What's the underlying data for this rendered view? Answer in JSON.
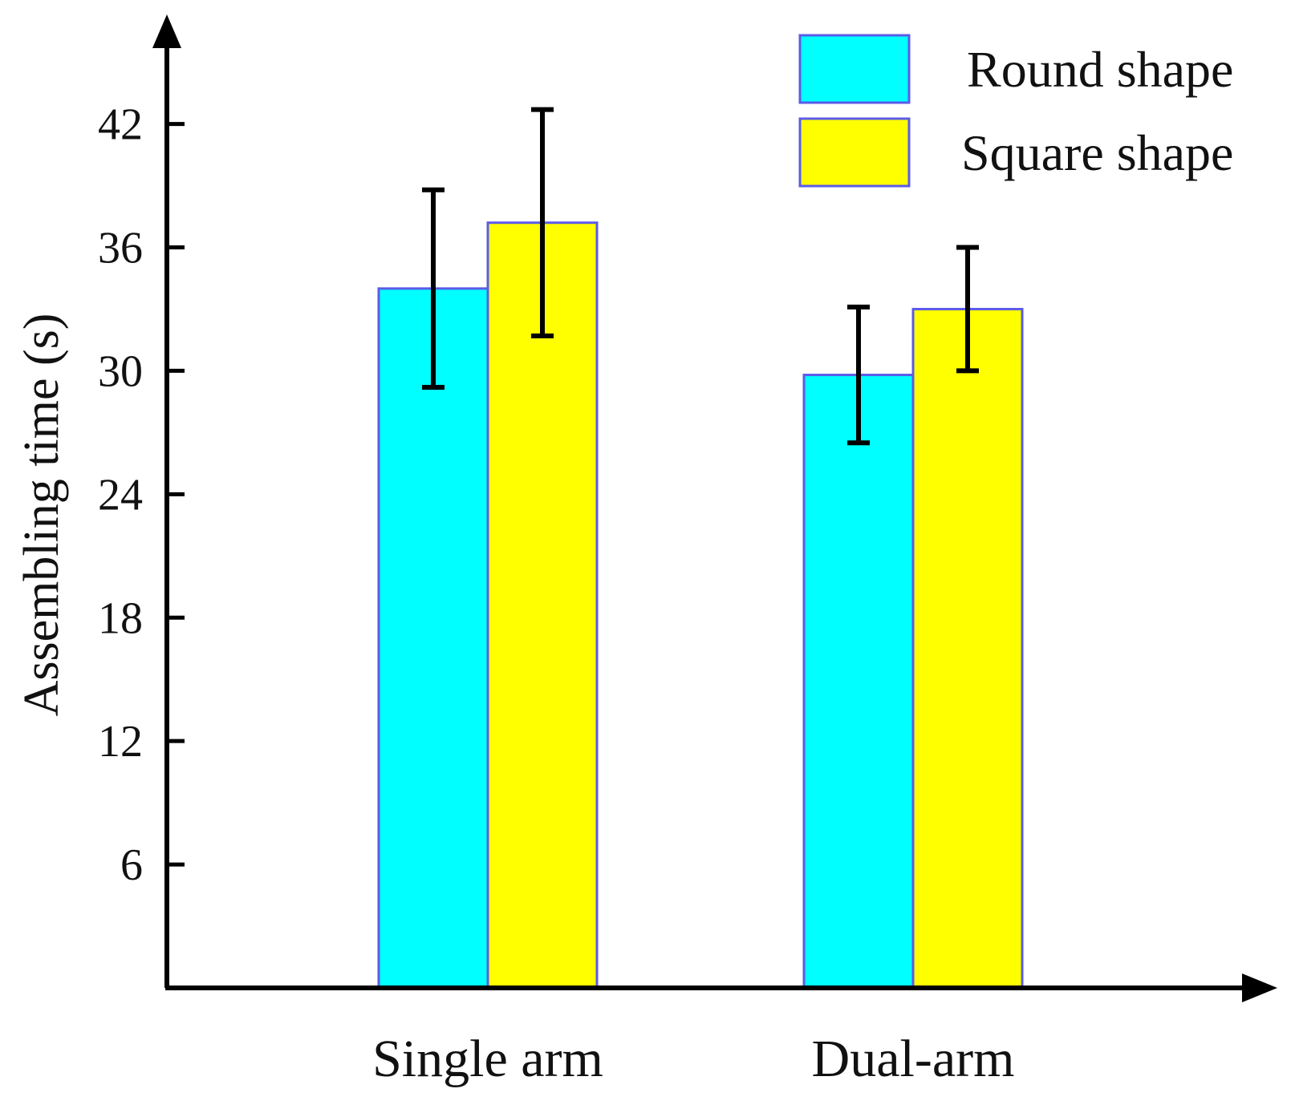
{
  "chart_data": {
    "type": "bar",
    "categories": [
      "Single arm",
      "Dual-arm"
    ],
    "series": [
      {
        "name": "Round shape",
        "color": "#00FFFF",
        "values": [
          34.0,
          29.8
        ],
        "errors": [
          4.8,
          3.3
        ]
      },
      {
        "name": "Square shape",
        "color": "#FFFF00",
        "values": [
          37.2,
          33.0
        ],
        "errors": [
          5.5,
          3.0
        ]
      }
    ],
    "title": "",
    "xlabel": "",
    "ylabel": "Assembling time (s)",
    "ylim": [
      0,
      46
    ],
    "yticks": [
      6,
      12,
      18,
      24,
      30,
      36,
      42
    ],
    "grid": false,
    "legend": "top-right",
    "bar_edge_color": "#5B5BE8",
    "error_bar_color": "#000000"
  }
}
